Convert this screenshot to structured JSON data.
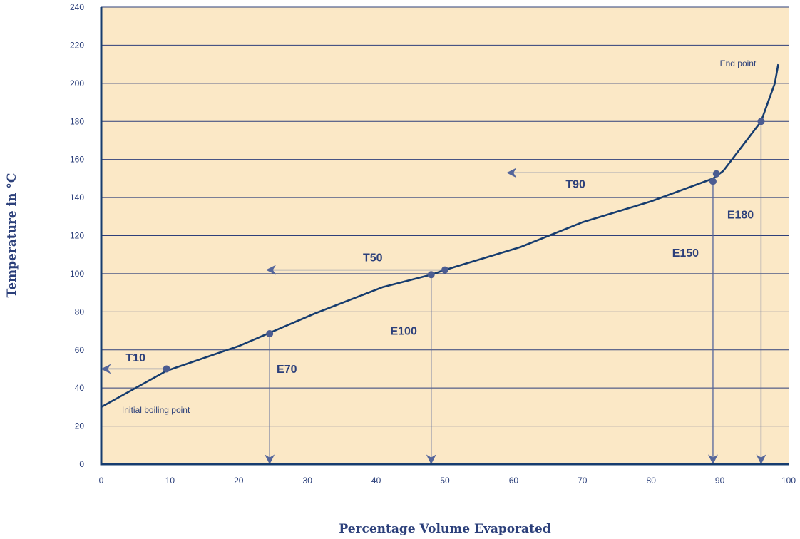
{
  "chart_data": {
    "type": "line",
    "xlabel": "Percentage Volume Evaporated",
    "ylabel": "Temperature in °C",
    "xlim": [
      0,
      100
    ],
    "ylim": [
      0,
      240
    ],
    "x_ticks": [
      0,
      10,
      20,
      30,
      40,
      50,
      60,
      70,
      80,
      90,
      100
    ],
    "y_ticks": [
      0,
      20,
      40,
      60,
      80,
      100,
      120,
      140,
      160,
      180,
      200,
      220,
      240
    ],
    "grid": "horizontal",
    "colors": {
      "plot_background": "#fbe8c6",
      "line": "#163c6e",
      "grid": "#2e3f7a",
      "marker": "#4b5c91",
      "arrow": "#55669b"
    },
    "series": [
      {
        "x": [
          0,
          9.5,
          20,
          31,
          41,
          48,
          50,
          61,
          70,
          80,
          89,
          90.5,
          96,
          98,
          98.5
        ],
        "y": [
          30,
          49,
          62,
          79,
          93,
          99.5,
          102,
          114,
          127,
          138,
          150,
          154,
          180,
          200,
          210
        ]
      }
    ],
    "markers": [
      {
        "x": 9.5,
        "y": 50
      },
      {
        "x": 24.5,
        "y": 68.5
      },
      {
        "x": 48,
        "y": 99.5
      },
      {
        "x": 50,
        "y": 102
      },
      {
        "x": 89,
        "y": 148.5
      },
      {
        "x": 89.5,
        "y": 152.5
      },
      {
        "x": 96,
        "y": 180
      }
    ],
    "horizontal_arrows": [
      {
        "label": "T10",
        "y": 50,
        "x_from": 9.5,
        "x_to": 0,
        "label_x": 5,
        "label_y": 54
      },
      {
        "label": "T50",
        "y": 102,
        "x_from": 50,
        "x_to": 24,
        "label_x": 39.5,
        "label_y": 106.5
      },
      {
        "label": "T90",
        "y": 153,
        "x_from": 89.5,
        "x_to": 59,
        "label_x": 69,
        "label_y": 145
      }
    ],
    "vertical_arrows": [
      {
        "label": "E70",
        "x": 24.5,
        "y_from": 68.5,
        "y_to": 0,
        "label_x": 27,
        "label_y": 48
      },
      {
        "label": "E100",
        "x": 48,
        "y_from": 99.5,
        "y_to": 0,
        "label_x": 44,
        "label_y": 68
      },
      {
        "label": "E150",
        "x": 89,
        "y_from": 148.5,
        "y_to": 0,
        "label_x": 85,
        "label_y": 109
      },
      {
        "label": "E180",
        "x": 96,
        "y_from": 180,
        "y_to": 0,
        "label_x": 93,
        "label_y": 129
      }
    ],
    "annotations": [
      {
        "text": "Initial boiling point",
        "x": 3,
        "y": 27
      },
      {
        "text": "End point",
        "x": 90,
        "y": 209
      }
    ]
  }
}
